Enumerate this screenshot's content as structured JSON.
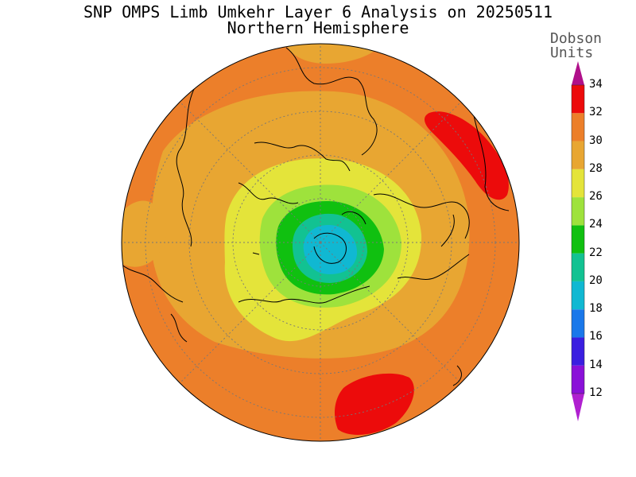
{
  "title": "SNP OMPS Limb Umkehr Layer 6 Analysis on 20250511",
  "subtitle": "Northern Hemisphere",
  "colorbar": {
    "units_line1": "Dobson",
    "units_line2": "Units",
    "ticks": [
      "34",
      "32",
      "30",
      "28",
      "26",
      "24",
      "22",
      "20",
      "18",
      "16",
      "14",
      "12"
    ],
    "bands": [
      {
        "min": 12,
        "max": 14,
        "color": "#8a10d8"
      },
      {
        "min": 14,
        "max": 16,
        "color": "#3a1ee0"
      },
      {
        "min": 16,
        "max": 18,
        "color": "#1a78ea"
      },
      {
        "min": 18,
        "max": 20,
        "color": "#10b8d2"
      },
      {
        "min": 20,
        "max": 22,
        "color": "#12c292"
      },
      {
        "min": 22,
        "max": 24,
        "color": "#10c010"
      },
      {
        "min": 24,
        "max": 26,
        "color": "#9ee23c"
      },
      {
        "min": 26,
        "max": 28,
        "color": "#e4e43a"
      },
      {
        "min": 28,
        "max": 30,
        "color": "#e8a632"
      },
      {
        "min": 30,
        "max": 32,
        "color": "#ec7f2a"
      },
      {
        "min": 32,
        "max": 34,
        "color": "#ec0b0b"
      }
    ],
    "over_color": "#b0108a",
    "under_color": "#b020d0"
  }
}
